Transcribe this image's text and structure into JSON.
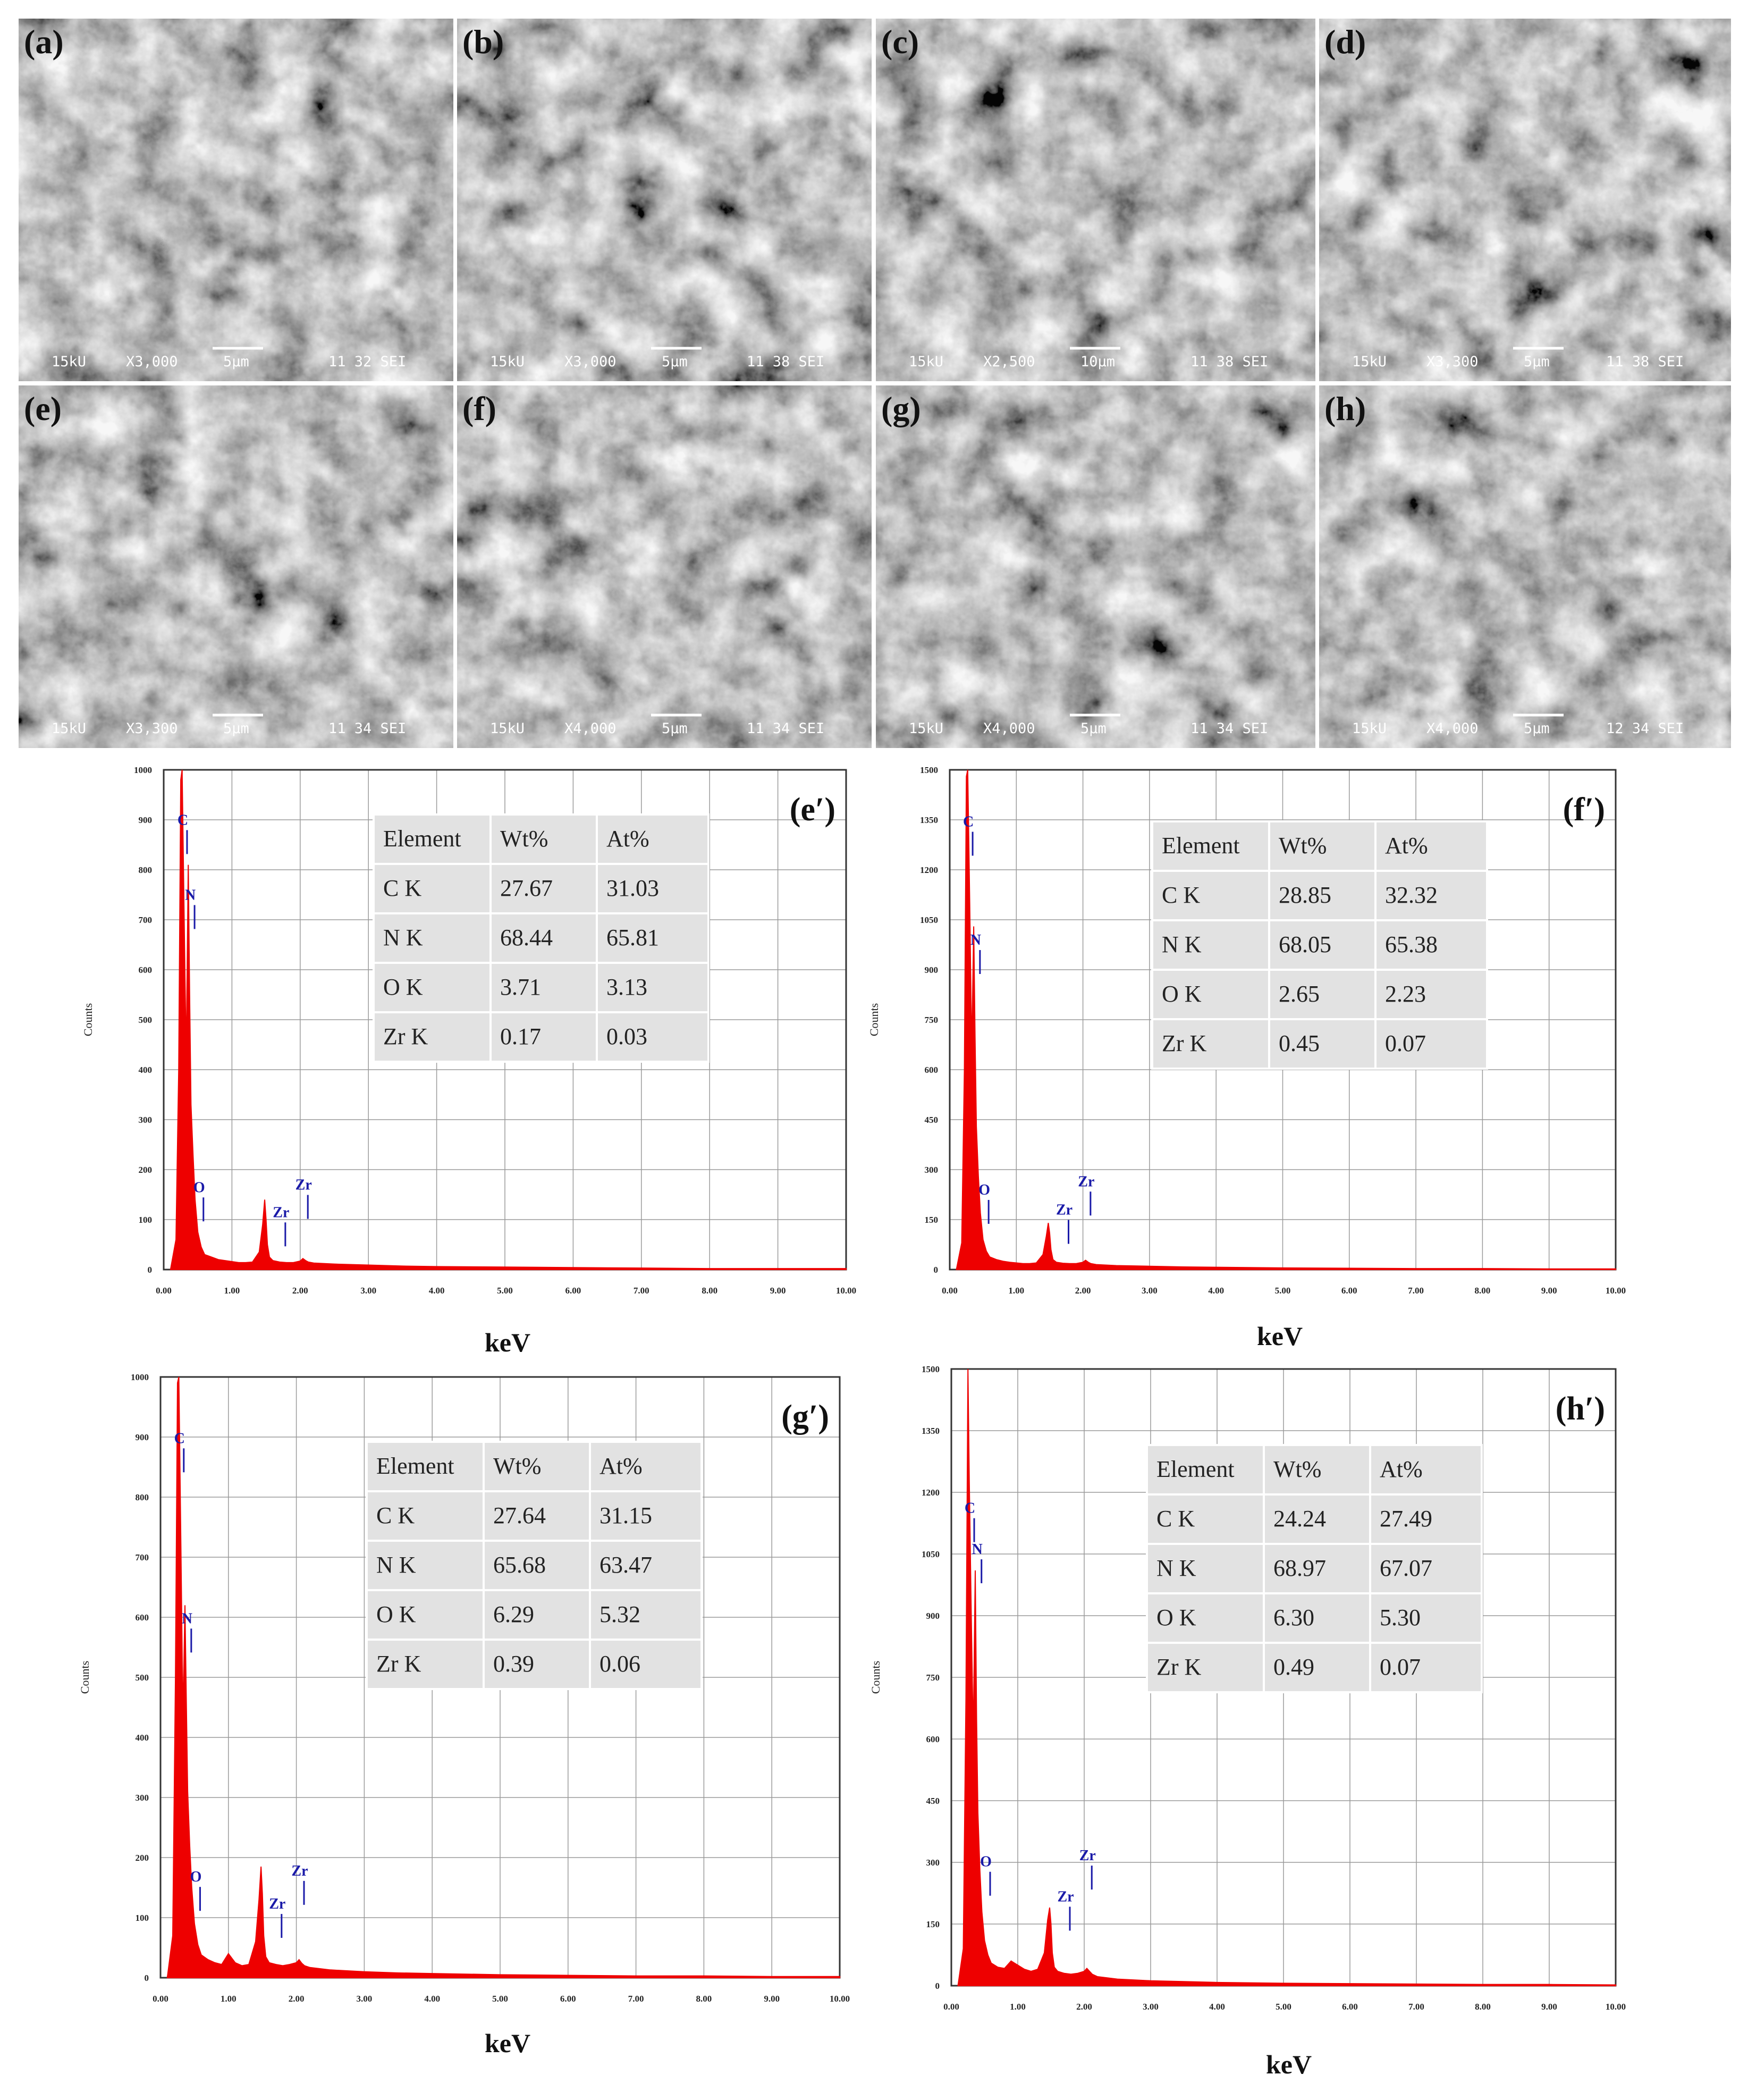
{
  "sem_panels": [
    {
      "label": "(a)",
      "footer": {
        "kv": "15kU",
        "mag": "X3,000",
        "scale": "5μm",
        "info": "11 32 SEI"
      }
    },
    {
      "label": "(b)",
      "footer": {
        "kv": "15kU",
        "mag": "X3,000",
        "scale": "5μm",
        "info": "11 38 SEI"
      }
    },
    {
      "label": "(c)",
      "footer": {
        "kv": "15kU",
        "mag": "X2,500",
        "scale": "10μm",
        "info": "11 38 SEI"
      }
    },
    {
      "label": "(d)",
      "footer": {
        "kv": "15kU",
        "mag": "X3,300",
        "scale": "5μm",
        "info": "11 38 SEI"
      }
    },
    {
      "label": "(e)",
      "footer": {
        "kv": "15kU",
        "mag": "X3,300",
        "scale": "5μm",
        "info": "11 34 SEI"
      }
    },
    {
      "label": "(f)",
      "footer": {
        "kv": "15kU",
        "mag": "X4,000",
        "scale": "5μm",
        "info": "11 34 SEI"
      }
    },
    {
      "label": "(g)",
      "footer": {
        "kv": "15kU",
        "mag": "X4,000",
        "scale": "5μm",
        "info": "11 34 SEI"
      }
    },
    {
      "label": "(h)",
      "footer": {
        "kv": "15kU",
        "mag": "X4,000",
        "scale": "5μm",
        "info": "12 34 SEI"
      }
    }
  ],
  "colors": {
    "spectrum": "#ee0000",
    "peak_label": "#1a1aa8",
    "table_bg": "#e2e2e2",
    "grid": "#9a9a9a"
  },
  "chart_data": [
    {
      "type": "area",
      "panel_label": "(e′)",
      "xlabel": "keV",
      "ylabel": "Counts",
      "xlim": [
        0,
        10
      ],
      "ylim": [
        0,
        1000
      ],
      "xticks": [
        "0.00",
        "1.00",
        "2.00",
        "3.00",
        "4.00",
        "5.00",
        "6.00",
        "7.00",
        "8.00",
        "9.00",
        "10.00"
      ],
      "yticks": [
        "0",
        "100",
        "200",
        "300",
        "400",
        "500",
        "600",
        "700",
        "800",
        "900",
        "1000"
      ],
      "grid": true,
      "series": [
        {
          "x": [
            0.1,
            0.18,
            0.22,
            0.25,
            0.27,
            0.3,
            0.33,
            0.36,
            0.38,
            0.4,
            0.43,
            0.46,
            0.5,
            0.55,
            0.6,
            0.7,
            0.8,
            0.9,
            1.0,
            1.1,
            1.2,
            1.3,
            1.4,
            1.45,
            1.48,
            1.5,
            1.52,
            1.55,
            1.6,
            1.7,
            1.8,
            1.9,
            2.0,
            2.04,
            2.08,
            2.12,
            2.2,
            2.5,
            3.0,
            3.5,
            4.0,
            5.0,
            6.0,
            7.0,
            8.0,
            9.0,
            10.0
          ],
          "y": [
            0,
            60,
            400,
            980,
            1000,
            700,
            420,
            810,
            550,
            330,
            230,
            140,
            75,
            45,
            30,
            25,
            20,
            18,
            16,
            14,
            14,
            15,
            35,
            90,
            140,
            100,
            50,
            25,
            18,
            15,
            14,
            14,
            17,
            22,
            18,
            15,
            13,
            11,
            9,
            7,
            6,
            5,
            4,
            3,
            2,
            2,
            2
          ]
        }
      ],
      "peak_labels": [
        {
          "text": "C",
          "x": 0.28,
          "y": 890
        },
        {
          "text": "N",
          "x": 0.39,
          "y": 740
        },
        {
          "text": "O",
          "x": 0.52,
          "y": 155
        },
        {
          "text": "Zr",
          "x": 2.05,
          "y": 160
        },
        {
          "text": "Zr",
          "x": 1.72,
          "y": 105
        }
      ],
      "table": {
        "headers": [
          "Element",
          "Wt%",
          "At%"
        ],
        "rows": [
          [
            "C K",
            "27.67",
            "31.03"
          ],
          [
            "N K",
            "68.44",
            "65.81"
          ],
          [
            "O K",
            "3.71",
            "3.13"
          ],
          [
            "Zr K",
            "0.17",
            "0.03"
          ]
        ]
      }
    },
    {
      "type": "area",
      "panel_label": "(f′)",
      "xlabel": "keV",
      "ylabel": "Counts",
      "xlim": [
        0,
        10
      ],
      "ylim": [
        0,
        1500
      ],
      "xticks": [
        "0.00",
        "1.00",
        "2.00",
        "3.00",
        "4.00",
        "5.00",
        "6.00",
        "7.00",
        "8.00",
        "9.00",
        "10.00"
      ],
      "yticks": [
        "0",
        "150",
        "300",
        "450",
        "600",
        "750",
        "900",
        "1050",
        "1200",
        "1350",
        "1500"
      ],
      "grid": true,
      "series": [
        {
          "x": [
            0.1,
            0.18,
            0.22,
            0.25,
            0.27,
            0.3,
            0.33,
            0.36,
            0.38,
            0.4,
            0.43,
            0.46,
            0.5,
            0.55,
            0.6,
            0.7,
            0.8,
            0.9,
            1.0,
            1.1,
            1.2,
            1.3,
            1.4,
            1.45,
            1.48,
            1.5,
            1.52,
            1.55,
            1.6,
            1.7,
            1.8,
            1.9,
            2.0,
            2.04,
            2.08,
            2.12,
            2.2,
            2.5,
            3.0,
            3.5,
            4.0,
            5.0,
            6.0,
            7.0,
            8.0,
            9.0,
            10.0
          ],
          "y": [
            0,
            80,
            600,
            1480,
            1500,
            1100,
            650,
            1030,
            700,
            430,
            280,
            170,
            90,
            55,
            38,
            30,
            25,
            22,
            20,
            18,
            18,
            20,
            45,
            100,
            140,
            110,
            60,
            30,
            22,
            19,
            18,
            18,
            22,
            28,
            22,
            18,
            15,
            12,
            10,
            8,
            7,
            5,
            4,
            3,
            3,
            2,
            2
          ]
        }
      ],
      "peak_labels": [
        {
          "text": "C",
          "x": 0.28,
          "y": 1330
        },
        {
          "text": "N",
          "x": 0.39,
          "y": 975
        },
        {
          "text": "O",
          "x": 0.52,
          "y": 225
        },
        {
          "text": "Zr",
          "x": 2.05,
          "y": 250
        },
        {
          "text": "Zr",
          "x": 1.72,
          "y": 165
        }
      ],
      "table": {
        "headers": [
          "Element",
          "Wt%",
          "At%"
        ],
        "rows": [
          [
            "C K",
            "28.85",
            "32.32"
          ],
          [
            "N K",
            "68.05",
            "65.38"
          ],
          [
            "O K",
            "2.65",
            "2.23"
          ],
          [
            "Zr K",
            "0.45",
            "0.07"
          ]
        ]
      }
    },
    {
      "type": "area",
      "panel_label": "(g′)",
      "xlabel": "keV",
      "ylabel": "Counts",
      "xlim": [
        0,
        10
      ],
      "ylim": [
        0,
        1000
      ],
      "xticks": [
        "0.00",
        "1.00",
        "2.00",
        "3.00",
        "4.00",
        "5.00",
        "6.00",
        "7.00",
        "8.00",
        "9.00",
        "10.00"
      ],
      "yticks": [
        "0",
        "100",
        "200",
        "300",
        "400",
        "500",
        "600",
        "700",
        "800",
        "900",
        "1000"
      ],
      "grid": true,
      "series": [
        {
          "x": [
            0.1,
            0.18,
            0.22,
            0.25,
            0.27,
            0.3,
            0.33,
            0.36,
            0.38,
            0.4,
            0.43,
            0.46,
            0.5,
            0.55,
            0.6,
            0.7,
            0.8,
            0.9,
            1.0,
            1.1,
            1.2,
            1.3,
            1.4,
            1.45,
            1.48,
            1.5,
            1.52,
            1.55,
            1.6,
            1.7,
            1.8,
            1.9,
            2.0,
            2.04,
            2.08,
            2.12,
            2.2,
            2.5,
            3.0,
            3.5,
            4.0,
            5.0,
            6.0,
            7.0,
            8.0,
            9.0,
            10.0
          ],
          "y": [
            0,
            70,
            500,
            990,
            1000,
            720,
            430,
            620,
            460,
            310,
            220,
            150,
            90,
            55,
            38,
            30,
            25,
            22,
            40,
            25,
            20,
            22,
            60,
            130,
            185,
            140,
            70,
            35,
            25,
            22,
            20,
            22,
            25,
            30,
            24,
            20,
            17,
            13,
            10,
            8,
            7,
            5,
            4,
            3,
            3,
            2,
            2
          ]
        }
      ],
      "peak_labels": [
        {
          "text": "C",
          "x": 0.28,
          "y": 890
        },
        {
          "text": "N",
          "x": 0.39,
          "y": 590
        },
        {
          "text": "O",
          "x": 0.52,
          "y": 160
        },
        {
          "text": "Zr",
          "x": 2.05,
          "y": 170
        },
        {
          "text": "Zr",
          "x": 1.72,
          "y": 115
        }
      ],
      "table": {
        "headers": [
          "Element",
          "Wt%",
          "At%"
        ],
        "rows": [
          [
            "C K",
            "27.64",
            "31.15"
          ],
          [
            "N K",
            "65.68",
            "63.47"
          ],
          [
            "O K",
            "6.29",
            "5.32"
          ],
          [
            "Zr K",
            "0.39",
            "0.06"
          ]
        ]
      }
    },
    {
      "type": "area",
      "panel_label": "(h′)",
      "xlabel": "keV",
      "ylabel": "Counts",
      "xlim": [
        0,
        10
      ],
      "ylim": [
        0,
        1500
      ],
      "xticks": [
        "0.00",
        "1.00",
        "2.00",
        "3.00",
        "4.00",
        "5.00",
        "6.00",
        "7.00",
        "8.00",
        "9.00",
        "10.00"
      ],
      "yticks": [
        "0",
        "150",
        "300",
        "450",
        "600",
        "750",
        "900",
        "1050",
        "1200",
        "1350",
        "1500"
      ],
      "grid": true,
      "series": [
        {
          "x": [
            0.1,
            0.18,
            0.22,
            0.25,
            0.27,
            0.3,
            0.33,
            0.36,
            0.38,
            0.4,
            0.43,
            0.46,
            0.5,
            0.55,
            0.6,
            0.7,
            0.8,
            0.9,
            1.0,
            1.1,
            1.2,
            1.3,
            1.4,
            1.45,
            1.48,
            1.5,
            1.52,
            1.55,
            1.6,
            1.7,
            1.8,
            1.9,
            2.0,
            2.04,
            2.08,
            2.12,
            2.2,
            2.5,
            3.0,
            3.5,
            4.0,
            5.0,
            6.0,
            7.0,
            8.0,
            9.0,
            10.0
          ],
          "y": [
            0,
            90,
            700,
            1500,
            1230,
            900,
            600,
            1010,
            650,
            420,
            280,
            180,
            110,
            75,
            55,
            45,
            42,
            60,
            50,
            40,
            35,
            40,
            80,
            160,
            190,
            150,
            80,
            45,
            35,
            30,
            28,
            30,
            35,
            42,
            35,
            28,
            22,
            16,
            12,
            10,
            8,
            6,
            5,
            4,
            3,
            3,
            2
          ]
        }
      ],
      "peak_labels": [
        {
          "text": "C",
          "x": 0.28,
          "y": 1150
        },
        {
          "text": "N",
          "x": 0.39,
          "y": 1050
        },
        {
          "text": "O",
          "x": 0.52,
          "y": 290
        },
        {
          "text": "Zr",
          "x": 2.05,
          "y": 305
        },
        {
          "text": "Zr",
          "x": 1.72,
          "y": 205
        }
      ],
      "table": {
        "headers": [
          "Element",
          "Wt%",
          "At%"
        ],
        "rows": [
          [
            "C K",
            "24.24",
            "27.49"
          ],
          [
            "N K",
            "68.97",
            "67.07"
          ],
          [
            "O K",
            "6.30",
            "5.30"
          ],
          [
            "Zr K",
            "0.49",
            "0.07"
          ]
        ]
      }
    }
  ]
}
